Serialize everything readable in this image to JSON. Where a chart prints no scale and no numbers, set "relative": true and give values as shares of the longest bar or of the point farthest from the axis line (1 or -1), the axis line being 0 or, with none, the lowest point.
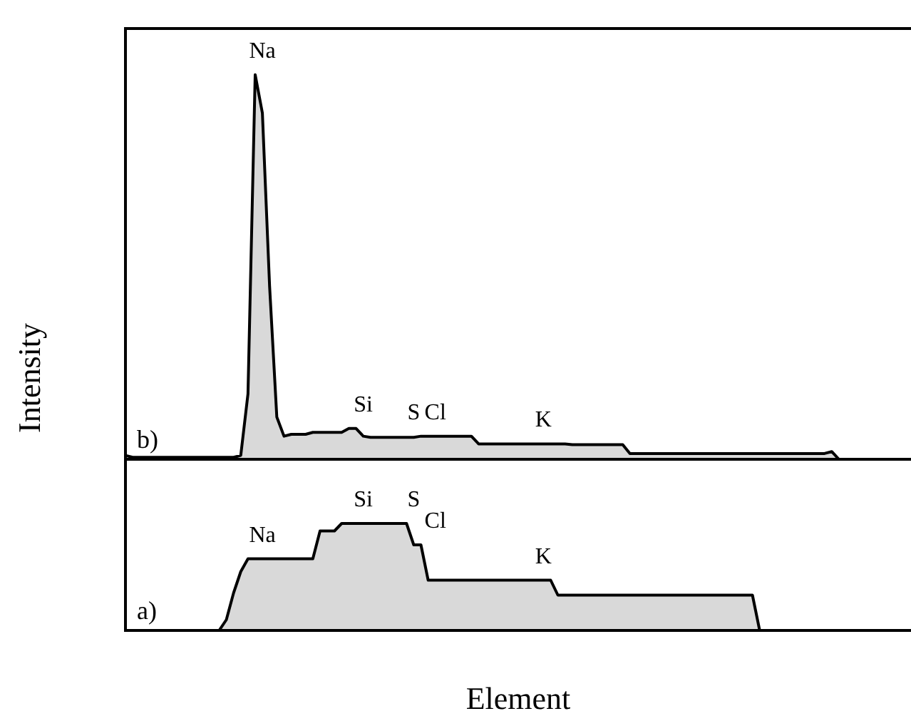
{
  "chart_data": [
    {
      "type": "area",
      "relative": true,
      "ylabel": "Intensity",
      "grid": false,
      "legend": false,
      "marker": "none",
      "categories": [
        null,
        null,
        null,
        null,
        null,
        null,
        null,
        null,
        null,
        null,
        null,
        null,
        null,
        null,
        null,
        null,
        null,
        null,
        null,
        "Na",
        null,
        null,
        null,
        null,
        null,
        null,
        null,
        null,
        null,
        null,
        null,
        null,
        null,
        "Si",
        null,
        null,
        null,
        null,
        null,
        null,
        "S",
        null,
        null,
        "Cl",
        null,
        null,
        null,
        null,
        null,
        null,
        null,
        null,
        null,
        null,
        null,
        null,
        null,
        null,
        "K",
        null,
        null,
        null,
        null,
        null,
        null,
        null,
        null,
        null,
        null,
        null,
        null,
        null,
        null,
        null,
        null,
        null,
        null,
        null,
        null,
        null,
        null,
        null,
        null,
        null,
        null,
        null,
        null,
        null,
        null,
        null,
        null,
        null,
        null,
        null,
        null,
        null,
        null,
        null,
        null,
        null,
        null,
        null,
        null,
        null,
        null,
        null,
        null,
        null,
        null,
        null
      ],
      "series": [
        {
          "color": "#000000",
          "values": [
            0.01,
            0.005,
            0.005,
            0.005,
            0.005,
            0.005,
            0.005,
            0.005,
            0.005,
            0.005,
            0.005,
            0.005,
            0.005,
            0.005,
            0.005,
            0.005,
            0.01,
            0.17,
            1,
            0.9,
            0.45,
            0.11,
            0.06,
            0.065,
            0.065,
            0.065,
            0.07,
            0.07,
            0.07,
            0.07,
            0.07,
            0.08,
            0.08,
            0.06,
            0.057,
            0.057,
            0.057,
            0.057,
            0.057,
            0.057,
            0.057,
            0.06,
            0.06,
            0.06,
            0.06,
            0.06,
            0.06,
            0.06,
            0.06,
            0.04,
            0.04,
            0.04,
            0.04,
            0.04,
            0.04,
            0.04,
            0.04,
            0.04,
            0.04,
            0.04,
            0.04,
            0.04,
            0.038,
            0.038,
            0.038,
            0.038,
            0.038,
            0.038,
            0.038,
            0.038,
            0.015,
            0.015,
            0.015,
            0.015,
            0.015,
            0.015,
            0.015,
            0.015,
            0.015,
            0.015,
            0.015,
            0.015,
            0.015,
            0.015,
            0.015,
            0.015,
            0.015,
            0.015,
            0.015,
            0.015,
            0.015,
            0.015,
            0.015,
            0.015,
            0.015,
            0.015,
            0.015,
            0.015,
            0.02,
            0,
            0,
            0,
            0,
            0,
            0,
            0,
            0,
            0,
            0,
            0
          ]
        }
      ],
      "annotations": [
        "b)"
      ]
    },
    {
      "type": "area",
      "relative": true,
      "xlabel": "Element",
      "grid": false,
      "legend": false,
      "marker": "none",
      "categories": [
        null,
        null,
        null,
        null,
        null,
        null,
        null,
        null,
        null,
        null,
        null,
        null,
        null,
        null,
        null,
        null,
        null,
        null,
        null,
        "Na",
        null,
        null,
        null,
        null,
        null,
        null,
        null,
        null,
        null,
        null,
        null,
        null,
        null,
        "Si",
        null,
        null,
        null,
        null,
        null,
        null,
        "S",
        null,
        null,
        "Cl",
        null,
        null,
        null,
        null,
        null,
        null,
        null,
        null,
        null,
        null,
        null,
        null,
        null,
        null,
        "K",
        null,
        null,
        null,
        null,
        null,
        null,
        null,
        null,
        null,
        null,
        null,
        null,
        null,
        null,
        null,
        null,
        null,
        null,
        null,
        null,
        null,
        null,
        null,
        null,
        null,
        null,
        null,
        null,
        null,
        null,
        null,
        null,
        null,
        null,
        null,
        null,
        null,
        null,
        null,
        null,
        null,
        null,
        null,
        null,
        null,
        null,
        null,
        null,
        null,
        null,
        null
      ],
      "series": [
        {
          "color": "#000000",
          "values": [
            0,
            0,
            0,
            0,
            0,
            0,
            0,
            0,
            0,
            0,
            0,
            0,
            0,
            0,
            0.1,
            0.35,
            0.55,
            0.67,
            0.67,
            0.67,
            0.67,
            0.67,
            0.67,
            0.67,
            0.67,
            0.67,
            0.67,
            0.93,
            0.93,
            0.93,
            1,
            1,
            1,
            1,
            1,
            1,
            1,
            1,
            1,
            1,
            0.8,
            0.8,
            0.47,
            0.47,
            0.47,
            0.47,
            0.47,
            0.47,
            0.47,
            0.47,
            0.47,
            0.47,
            0.47,
            0.47,
            0.47,
            0.47,
            0.47,
            0.47,
            0.47,
            0.47,
            0.33,
            0.33,
            0.33,
            0.33,
            0.33,
            0.33,
            0.33,
            0.33,
            0.33,
            0.33,
            0.33,
            0.33,
            0.33,
            0.33,
            0.33,
            0.33,
            0.33,
            0.33,
            0.33,
            0.33,
            0.33,
            0.33,
            0.33,
            0.33,
            0.33,
            0.33,
            0.33,
            0.33,
            0,
            0,
            0,
            0,
            0,
            0,
            0,
            0,
            0,
            0,
            0,
            0,
            0,
            0,
            0,
            0,
            0,
            0,
            0,
            0,
            0,
            0
          ]
        }
      ],
      "annotations": [
        "a)"
      ]
    }
  ]
}
